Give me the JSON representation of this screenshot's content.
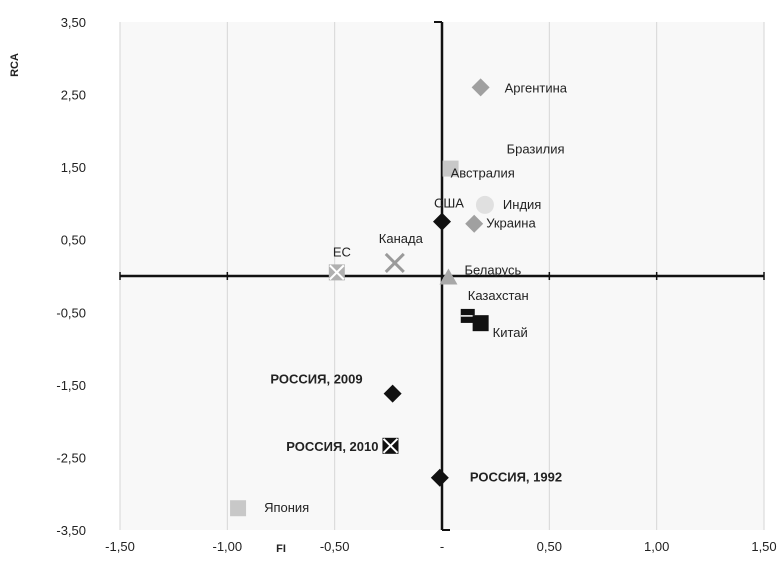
{
  "chart_data": {
    "type": "scatter",
    "title": "",
    "xlabel": "FI",
    "ylabel": "RCA",
    "xlim": [
      -1.5,
      1.5
    ],
    "ylim": [
      -3.5,
      3.5
    ],
    "x_ticks": [
      -1.5,
      -1.0,
      -0.5,
      0.0,
      0.5,
      1.0,
      1.5
    ],
    "x_tick_labels": [
      "-1,50",
      "-1,00",
      "-0,50",
      "-",
      "0,50",
      "1,00",
      "1,50"
    ],
    "y_ticks": [
      3.5,
      2.5,
      1.5,
      0.5,
      -0.5,
      -1.5,
      -2.5,
      -3.5
    ],
    "y_tick_labels": [
      "3,50",
      "2,50",
      "1,50",
      "0,50",
      "-0,50",
      "-1,50",
      "-2,50",
      "-3,50"
    ],
    "grid": "vertical",
    "legend": "none",
    "points": [
      {
        "label": "Аргентина",
        "x": 0.18,
        "y": 2.6,
        "marker": "diamond",
        "color": "#a0a0a0",
        "label_bold": false
      },
      {
        "label": "Бразилия",
        "x": 0.04,
        "y": 1.48,
        "marker": "square",
        "color": "#c8c8c8",
        "label_bold": false
      },
      {
        "label": "Австралия",
        "x": 0.04,
        "y": 1.48,
        "marker": "none",
        "color": "#c8c8c8",
        "label_bold": false
      },
      {
        "label": "Индия",
        "x": 0.2,
        "y": 0.98,
        "marker": "circle",
        "color": "#e0e0e0",
        "label_bold": false
      },
      {
        "label": "США",
        "x": 0.0,
        "y": 0.75,
        "marker": "diamond",
        "color": "#111111",
        "label_bold": false
      },
      {
        "label": "Украина",
        "x": 0.15,
        "y": 0.72,
        "marker": "diamond",
        "color": "#a0a0a0",
        "label_bold": false
      },
      {
        "label": "ЕС",
        "x": -0.49,
        "y": 0.05,
        "marker": "x-square",
        "color": "#b0b0b0",
        "label_bold": false
      },
      {
        "label": "Канада",
        "x": -0.22,
        "y": 0.18,
        "marker": "x",
        "color": "#9a9a9a",
        "label_bold": false
      },
      {
        "label": "Беларусь",
        "x": 0.03,
        "y": -0.02,
        "marker": "triangle",
        "color": "#a8a8a8",
        "label_bold": false
      },
      {
        "label": "Казахстан",
        "x": 0.12,
        "y": -0.55,
        "marker": "dash",
        "color": "#111111",
        "label_bold": false
      },
      {
        "label": "Китай",
        "x": 0.18,
        "y": -0.65,
        "marker": "square",
        "color": "#111111",
        "label_bold": false
      },
      {
        "label": "РОССИЯ, 2009",
        "x": -0.23,
        "y": -1.62,
        "marker": "diamond",
        "color": "#111111",
        "label_bold": true
      },
      {
        "label": "РОССИЯ, 2010",
        "x": -0.24,
        "y": -2.34,
        "marker": "x-square",
        "color": "#111111",
        "label_bold": true
      },
      {
        "label": "РОССИЯ, 1992",
        "x": -0.01,
        "y": -2.78,
        "marker": "diamond",
        "color": "#111111",
        "label_bold": true
      },
      {
        "label": "Япония",
        "x": -0.95,
        "y": -3.2,
        "marker": "square",
        "color": "#c8c8c8",
        "label_bold": false
      }
    ]
  }
}
